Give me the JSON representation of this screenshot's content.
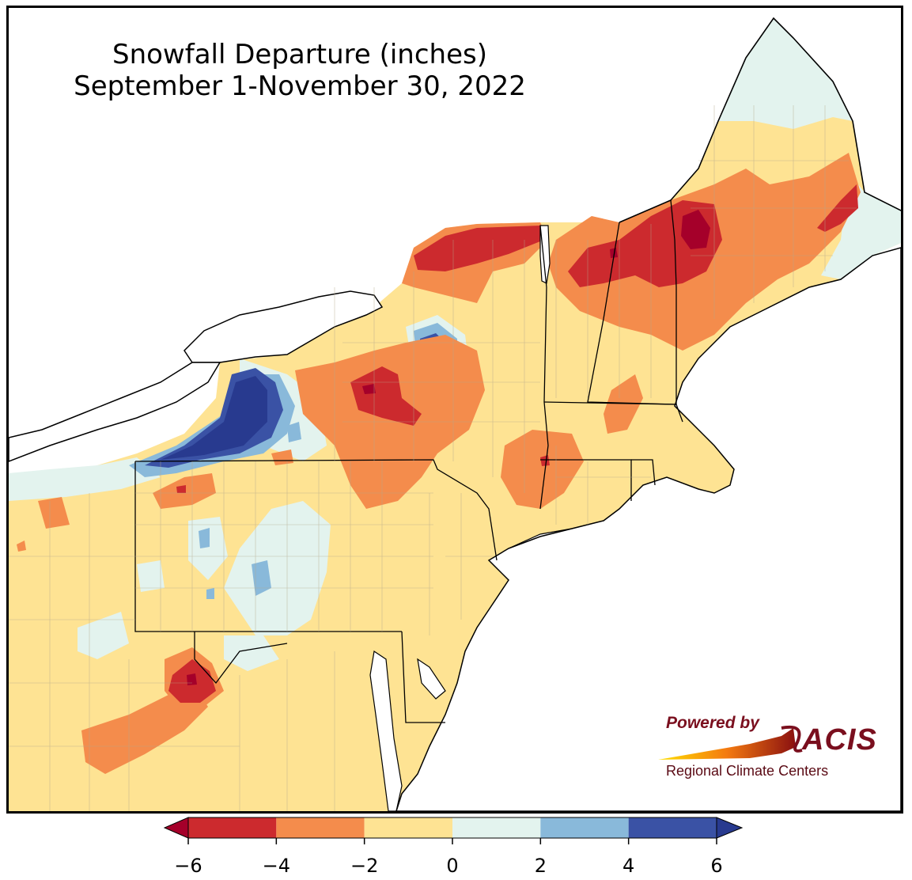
{
  "title": {
    "line1": "Snowfall Departure (inches)",
    "line2": "September 1-November 30, 2022"
  },
  "colorbar": {
    "ticks": [
      "−6",
      "−4",
      "−2",
      "0",
      "2",
      "4",
      "6"
    ],
    "bins": [
      {
        "from": -6,
        "to": -4,
        "color": "#cc2a2e"
      },
      {
        "from": -4,
        "to": -2,
        "color": "#f48c4c"
      },
      {
        "from": -2,
        "to": 0,
        "color": "#fee393"
      },
      {
        "from": 0,
        "to": 2,
        "color": "#e3f3ee"
      },
      {
        "from": 2,
        "to": 4,
        "color": "#89b9da"
      },
      {
        "from": 4,
        "to": 6,
        "color": "#3a52a5"
      }
    ],
    "under_color": "#a5002a",
    "over_color": "#283a8f"
  },
  "logo": {
    "powered_by": "Powered by",
    "brand": "ACIS",
    "subtitle": "Regional Climate Centers"
  },
  "colors": {
    "water": "#ffffff",
    "land_default": "#fee393",
    "borders": "#000000",
    "county_lines": "#b4a98c"
  }
}
